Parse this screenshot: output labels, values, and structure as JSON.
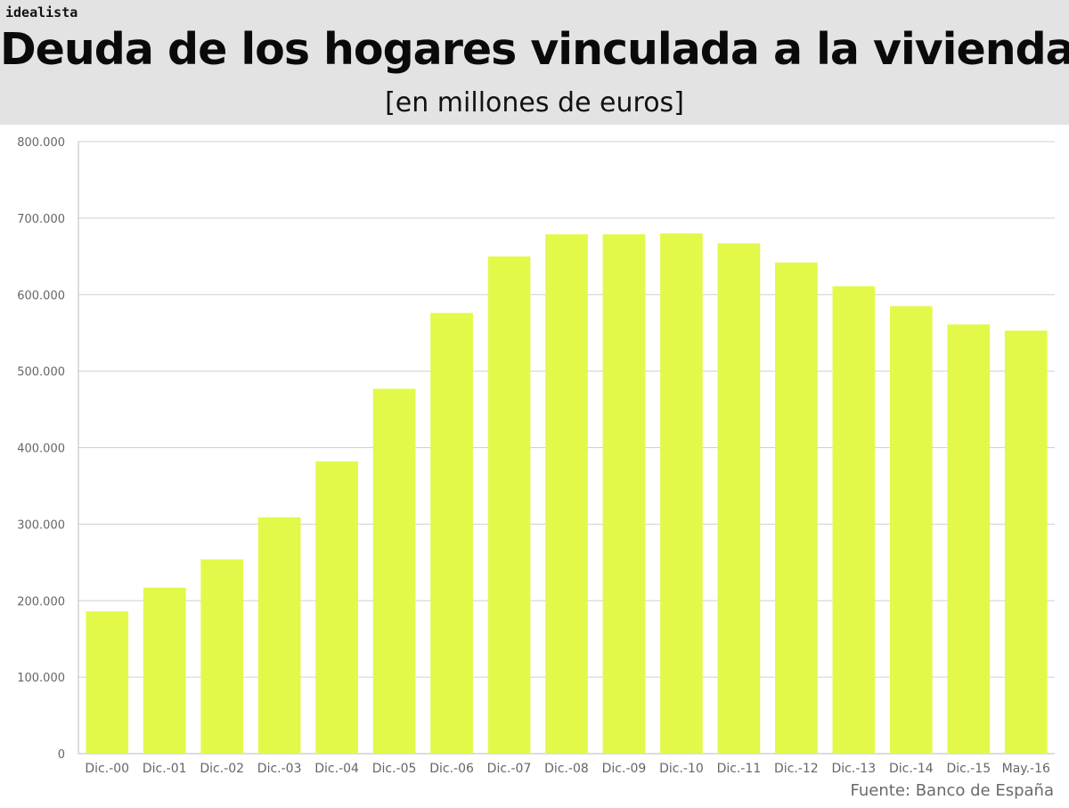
{
  "header": {
    "logo": "idealista",
    "title": "Deuda de los hogares vinculada a la vivienda",
    "subtitle": "[en millones de euros]"
  },
  "footer": {
    "source": "Fuente: Banco de España"
  },
  "colors": {
    "bar": "#e2f94a",
    "grid": "#d0d0d0",
    "header_bg": "#e3e3e3",
    "axis_text": "#666666"
  },
  "chart_data": {
    "type": "bar",
    "title": "Deuda de los hogares vinculada a la vivienda",
    "subtitle": "[en millones de euros]",
    "categories": [
      "Dic.-00",
      "Dic.-01",
      "Dic.-02",
      "Dic.-03",
      "Dic.-04",
      "Dic.-05",
      "Dic.-06",
      "Dic.-07",
      "Dic.-08",
      "Dic.-09",
      "Dic.-10",
      "Dic.-11",
      "Dic.-12",
      "Dic.-13",
      "Dic.-14",
      "Dic.-15",
      "May.-16"
    ],
    "values": [
      186000,
      217000,
      254000,
      309000,
      382000,
      477000,
      576000,
      650000,
      679000,
      679000,
      680000,
      667000,
      642000,
      611000,
      585000,
      561000,
      553000
    ],
    "yticks": [
      0,
      100000,
      200000,
      300000,
      400000,
      500000,
      600000,
      700000,
      800000
    ],
    "ytick_labels": [
      "0",
      "100.000",
      "200.000",
      "300.000",
      "400.000",
      "500.000",
      "600.000",
      "700.000",
      "800.000"
    ],
    "ylim": [
      0,
      800000
    ],
    "xlabel": "",
    "ylabel": "",
    "grid": true,
    "legend": false
  }
}
